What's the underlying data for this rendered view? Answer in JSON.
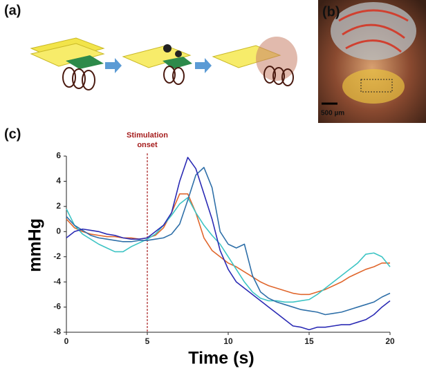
{
  "panels": {
    "a": "(a)",
    "b": "(b)",
    "c": "(c)"
  },
  "scale_bar": "500 µm",
  "chart_data": {
    "type": "line",
    "xlabel": "Time (s)",
    "ylabel": "mmHg",
    "annotation": {
      "lines": [
        "Stimulation",
        "onset"
      ],
      "x": 5,
      "color": "#a51c1c"
    },
    "xlim": [
      0,
      20
    ],
    "xticks": [
      0,
      5,
      10,
      15,
      20
    ],
    "ylim": [
      -8,
      6
    ],
    "yticks": [
      -8,
      -6,
      -4,
      -2,
      0,
      2,
      4,
      6
    ],
    "grid": false,
    "x": [
      0,
      0.5,
      1,
      1.5,
      2,
      2.5,
      3,
      3.5,
      4,
      4.5,
      5,
      5.5,
      6,
      6.5,
      7,
      7.5,
      8,
      8.5,
      9,
      9.5,
      10,
      10.5,
      11,
      11.5,
      12,
      12.5,
      13,
      13.5,
      14,
      14.5,
      15,
      15.5,
      16,
      16.5,
      17,
      17.5,
      18,
      18.5,
      19,
      19.5,
      20
    ],
    "series": [
      {
        "color": "#e0662c",
        "values": [
          1,
          0.3,
          0,
          -0.2,
          -0.3,
          -0.4,
          -0.4,
          -0.5,
          -0.5,
          -0.6,
          -0.5,
          -0.3,
          0.3,
          1.5,
          3,
          3,
          1.5,
          -0.5,
          -1.5,
          -2,
          -2.5,
          -2.8,
          -3.2,
          -3.6,
          -4,
          -4.3,
          -4.5,
          -4.7,
          -4.9,
          -5,
          -5,
          -4.8,
          -4.6,
          -4.3,
          -4,
          -3.6,
          -3.3,
          -3,
          -2.8,
          -2.5,
          -2.5
        ]
      },
      {
        "color": "#3cc4c4",
        "values": [
          1.8,
          0.5,
          -0.2,
          -0.6,
          -1,
          -1.3,
          -1.6,
          -1.6,
          -1.2,
          -0.9,
          -0.6,
          -0.2,
          0.5,
          1.3,
          2.2,
          2.7,
          1.5,
          0.5,
          -0.3,
          -1,
          -2,
          -3,
          -4,
          -4.8,
          -5.3,
          -5.5,
          -5.5,
          -5.6,
          -5.6,
          -5.5,
          -5.4,
          -5,
          -4.5,
          -4,
          -3.5,
          -3,
          -2.5,
          -1.8,
          -1.7,
          -2,
          -2.8
        ]
      },
      {
        "color": "#2e6fa8",
        "values": [
          1.2,
          0.5,
          0.1,
          -0.3,
          -0.5,
          -0.6,
          -0.7,
          -0.8,
          -0.8,
          -0.7,
          -0.7,
          -0.6,
          -0.5,
          -0.2,
          0.6,
          2.5,
          4.5,
          5.1,
          3.5,
          0,
          -1,
          -1.3,
          -1,
          -3.5,
          -4.8,
          -5.3,
          -5.6,
          -5.8,
          -6,
          -6.2,
          -6.3,
          -6.4,
          -6.6,
          -6.5,
          -6.4,
          -6.2,
          -6,
          -5.8,
          -5.6,
          -5.2,
          -4.9
        ]
      },
      {
        "color": "#2a2ab4",
        "values": [
          -0.5,
          0,
          0.2,
          0.1,
          0,
          -0.2,
          -0.3,
          -0.5,
          -0.6,
          -0.6,
          -0.5,
          0,
          0.5,
          1.5,
          4,
          5.9,
          5,
          3,
          1,
          -1.5,
          -3,
          -4,
          -4.5,
          -5,
          -5.5,
          -6,
          -6.5,
          -7,
          -7.5,
          -7.6,
          -7.8,
          -7.6,
          -7.6,
          -7.5,
          -7.4,
          -7.4,
          -7.2,
          -7,
          -6.6,
          -6,
          -5.5
        ]
      }
    ]
  }
}
